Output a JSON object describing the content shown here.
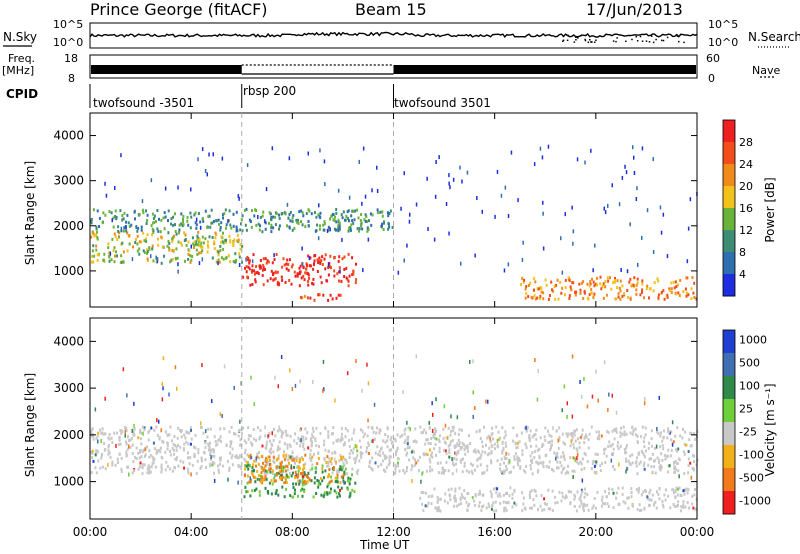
{
  "header": {
    "station": "Prince George (fitACF)",
    "beam": "Beam 15",
    "date": "17/Jun/2013"
  },
  "strips": {
    "nsky_label": "N.Sky",
    "nsearch_label": "N.Search",
    "nsky_ticks": [
      "10^5",
      "10^0"
    ],
    "nsearch_ticks": [
      "10^5",
      "10^0"
    ],
    "freq_label": "Freq.",
    "freq_unit": "[MHz]",
    "freq_ticks": [
      "18",
      "8"
    ],
    "nave_label": "Nave",
    "nave_ticks": [
      "60",
      "0"
    ],
    "cpid_label": "CPID",
    "cpid_segments": [
      {
        "label": "twofsound -3501",
        "start_hour": 0,
        "end_hour": 6
      },
      {
        "label": "rbsp 200",
        "start_hour": 6,
        "end_hour": 12
      },
      {
        "label": "twofsound 3501",
        "start_hour": 12,
        "end_hour": 24
      }
    ]
  },
  "chart_data": [
    {
      "type": "heatmap",
      "title": "",
      "xlabel": "Time UT",
      "ylabel": "Slant Range [km]",
      "xlim": [
        0,
        24
      ],
      "ylim": [
        200,
        4500
      ],
      "x_ticks": [
        "00:00",
        "04:00",
        "08:00",
        "12:00",
        "16:00",
        "20:00",
        "00:00"
      ],
      "y_ticks": [
        1000,
        2000,
        3000,
        4000
      ],
      "colorbar": {
        "label": "Power [dB]",
        "ticks": [
          4,
          8,
          12,
          16,
          20,
          24,
          28
        ],
        "colors": [
          "#1f2de0",
          "#2f6fb0",
          "#3c8d73",
          "#69b33a",
          "#f2c21a",
          "#f28a1a",
          "#f24d1a",
          "#ee1f1f"
        ]
      },
      "scatter_regions": [
        {
          "name": "lower band",
          "time": [
            0,
            6
          ],
          "range": [
            1200,
            1900
          ],
          "value": 14
        },
        {
          "name": "upper band",
          "time": [
            0,
            12
          ],
          "range": [
            1900,
            2400
          ],
          "value": 8
        },
        {
          "name": "enhanced echoes",
          "time": [
            6,
            10.5
          ],
          "range": [
            700,
            1400
          ],
          "value": 28
        },
        {
          "name": "thin layer",
          "time": [
            8,
            10
          ],
          "range": [
            380,
            520
          ],
          "value": 24
        },
        {
          "name": "late band",
          "time": [
            17,
            24
          ],
          "range": [
            400,
            900
          ],
          "value": 20
        }
      ]
    },
    {
      "type": "heatmap",
      "title": "",
      "xlabel": "Time UT",
      "ylabel": "Slant Range [km]",
      "xlim": [
        0,
        24
      ],
      "ylim": [
        200,
        4500
      ],
      "x_ticks": [
        "00:00",
        "04:00",
        "08:00",
        "12:00",
        "16:00",
        "20:00",
        "00:00"
      ],
      "y_ticks": [
        1000,
        2000,
        3000,
        4000
      ],
      "colorbar": {
        "label": "Velocity [m s⁻¹]",
        "ticks": [
          1000,
          500,
          100,
          25,
          -25,
          -100,
          -500,
          -1000
        ],
        "colors": [
          "#1f3fd0",
          "#3f6fb0",
          "#2f8a4a",
          "#6fcf3a",
          "#c8c8c8",
          "#f2b01a",
          "#f27a1a",
          "#ef1f1f"
        ]
      },
      "scatter_regions": [
        {
          "name": "ground scatter",
          "time": [
            0,
            24
          ],
          "range": [
            1200,
            2200
          ],
          "value": 0
        },
        {
          "name": "green echoes",
          "time": [
            6,
            10.5
          ],
          "range": [
            700,
            1400
          ],
          "value": 300
        },
        {
          "name": "orange echoes",
          "time": [
            6,
            10
          ],
          "range": [
            1000,
            1600
          ],
          "value": -200
        },
        {
          "name": "late ground scatter",
          "time": [
            13,
            24
          ],
          "range": [
            400,
            900
          ],
          "value": 0
        }
      ]
    }
  ]
}
